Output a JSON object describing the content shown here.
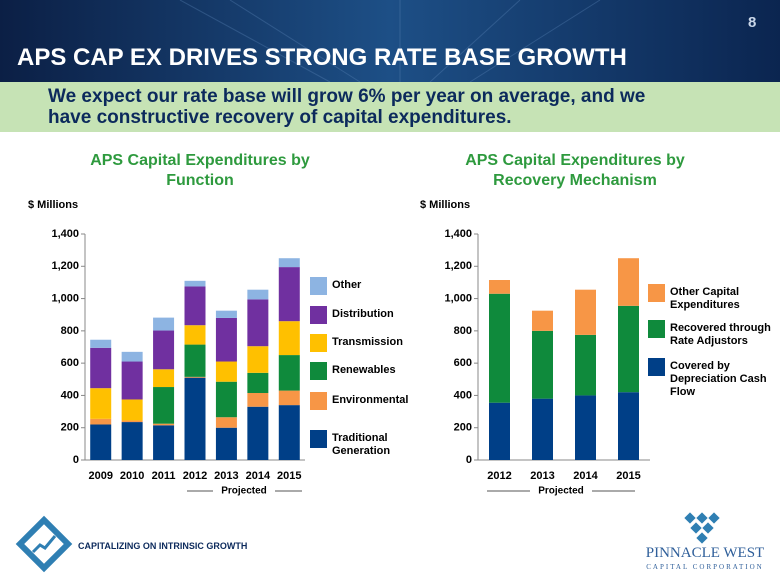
{
  "header": {
    "title": "APS CAP EX DRIVES STRONG RATE BASE GROWTH",
    "page_number": "8"
  },
  "banner": {
    "text": "We expect our rate base will grow 6% per year on average, and we have constructive recovery of capital expenditures."
  },
  "chart_data": [
    {
      "type": "stacked_bar",
      "title": "APS Capital Expenditures by Function",
      "y_label": "$ Millions",
      "annotation": "Projected",
      "categories": [
        "2009",
        "2010",
        "2011",
        "2012",
        "2013",
        "2014",
        "2015"
      ],
      "series": [
        {
          "name": "Traditional Generation",
          "color": "#003f87",
          "values": [
            220,
            235,
            215,
            510,
            200,
            330,
            340
          ]
        },
        {
          "name": "Environmental",
          "color": "#f79646",
          "values": [
            35,
            10,
            10,
            5,
            65,
            85,
            90
          ]
        },
        {
          "name": "Renewables",
          "color": "#0f8a3c",
          "values": [
            0,
            0,
            227,
            200,
            220,
            125,
            220
          ]
        },
        {
          "name": "Transmission",
          "color": "#ffc000",
          "values": [
            190,
            130,
            110,
            120,
            125,
            165,
            210
          ]
        },
        {
          "name": "Distribution",
          "color": "#7030a0",
          "values": [
            250,
            235,
            240,
            240,
            270,
            290,
            335
          ]
        },
        {
          "name": "Other",
          "color": "#8db4e2",
          "values": [
            50,
            60,
            80,
            35,
            45,
            60,
            55
          ]
        }
      ],
      "ylim": [
        0,
        1400
      ],
      "yticks": [
        0,
        200,
        400,
        600,
        800,
        {
          "value": 1000,
          "label": "1,000"
        },
        {
          "value": 1200,
          "label": "1,200"
        },
        {
          "value": 1400,
          "label": "1,400"
        }
      ]
    },
    {
      "type": "stacked_bar",
      "title": "APS Capital Expenditures by Recovery Mechanism",
      "y_label": "$ Millions",
      "annotation": "Projected",
      "categories": [
        "2012",
        "2013",
        "2014",
        "2015"
      ],
      "series": [
        {
          "name": "Covered by Depreciation Cash Flow",
          "color": "#003f87",
          "values": [
            355,
            380,
            400,
            420
          ]
        },
        {
          "name": "Recovered through Rate Adjustors",
          "color": "#0f8a3c",
          "values": [
            675,
            420,
            375,
            535
          ]
        },
        {
          "name": "Other Capital Expenditures",
          "color": "#f79646",
          "values": [
            85,
            125,
            280,
            295
          ]
        }
      ],
      "ylim": [
        0,
        1400
      ],
      "yticks": [
        0,
        200,
        400,
        600,
        800,
        {
          "value": 1000,
          "label": "1,000"
        },
        {
          "value": 1200,
          "label": "1,200"
        },
        {
          "value": 1400,
          "label": "1,400"
        }
      ]
    }
  ],
  "footer": {
    "tagline": "CAPITALIZING ON INTRINSIC GROWTH",
    "logo_name": "PINNACLE WEST",
    "logo_sub": "CAPITAL CORPORATION"
  }
}
